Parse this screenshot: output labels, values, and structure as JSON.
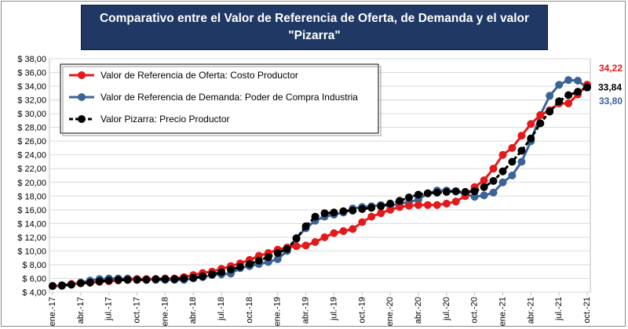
{
  "title_line1": "Comparativo entre el Valor de Referencia de Oferta, de Demanda y el valor",
  "title_line2": "\"Pizarra\"",
  "chart_data": {
    "type": "line",
    "title": "Comparativo entre el Valor de Referencia de Oferta, de Demanda y el valor \"Pizarra\"",
    "xlabel": "",
    "ylabel": "",
    "ylim": [
      4,
      38
    ],
    "yticks": [
      "$ 4,00",
      "$ 6,00",
      "$ 8,00",
      "$ 10,00",
      "$ 12,00",
      "$ 14,00",
      "$ 16,00",
      "$ 18,00",
      "$ 20,00",
      "$ 22,00",
      "$ 24,00",
      "$ 26,00",
      "$ 28,00",
      "$ 30,00",
      "$ 32,00",
      "$ 34,00",
      "$ 36,00",
      "$ 38,00"
    ],
    "ytick_values": [
      4,
      6,
      8,
      10,
      12,
      14,
      16,
      18,
      20,
      22,
      24,
      26,
      28,
      30,
      32,
      34,
      36,
      38
    ],
    "grid": true,
    "legend_position": "top-left",
    "x": [
      "ene.-17",
      "feb.-17",
      "mar.-17",
      "abr.-17",
      "may.-17",
      "jun.-17",
      "jul.-17",
      "ago.-17",
      "sep.-17",
      "oct.-17",
      "nov.-17",
      "dic.-17",
      "ene.-18",
      "feb.-18",
      "mar.-18",
      "abr.-18",
      "may.-18",
      "jun.-18",
      "jul.-18",
      "ago.-18",
      "sep.-18",
      "oct.-18",
      "nov.-18",
      "dic.-18",
      "ene.-19",
      "feb.-19",
      "mar.-19",
      "abr.-19",
      "may.-19",
      "jun.-19",
      "jul.-19",
      "ago.-19",
      "sep.-19",
      "oct.-19",
      "nov.-19",
      "dic.-19",
      "ene.-20",
      "feb.-20",
      "mar.-20",
      "abr.-20",
      "may.-20",
      "jun.-20",
      "jul.-20",
      "ago.-20",
      "sep.-20",
      "oct.-20",
      "nov.-20",
      "dic.-20",
      "ene.-21",
      "feb.-21",
      "mar.-21",
      "abr.-21",
      "may.-21",
      "jun.-21",
      "jul.-21",
      "ago.-21",
      "sep.-21",
      "oct.-21"
    ],
    "xtick_labels": [
      "ene.-17",
      "abr.-17",
      "jul.-17",
      "oct.-17",
      "ene.-18",
      "abr.-18",
      "jul.-18",
      "oct.-18",
      "ene.-19",
      "abr.-19",
      "jul.-19",
      "oct.-19",
      "ene.-20",
      "abr.-20",
      "jul.-20",
      "oct.-20",
      "ene.-21",
      "abr.-21",
      "jul.-21",
      "oct.-21"
    ],
    "series": [
      {
        "name": "Valor de Referencia de Oferta: Costo Productor",
        "color": "#e31a1c",
        "end_label": "34,22",
        "values": [
          4.9,
          5.0,
          5.2,
          5.3,
          5.4,
          5.5,
          5.6,
          5.7,
          5.8,
          5.9,
          5.9,
          5.9,
          6.0,
          6.0,
          6.2,
          6.5,
          6.8,
          7.0,
          7.4,
          7.8,
          8.2,
          8.7,
          9.3,
          9.7,
          10.2,
          10.5,
          10.7,
          10.8,
          11.3,
          12.0,
          12.6,
          12.9,
          13.2,
          14.2,
          15.0,
          15.5,
          16.0,
          16.4,
          16.6,
          16.7,
          16.7,
          16.7,
          16.9,
          17.2,
          18.0,
          19.3,
          20.3,
          22.0,
          24.0,
          25.0,
          26.8,
          28.5,
          29.8,
          30.5,
          31.5,
          31.5,
          32.8,
          34.22
        ]
      },
      {
        "name": "Valor de Referencia de Demanda: Poder de Compra Industria",
        "color": "#3b6396",
        "end_label": "33,80",
        "values": [
          4.9,
          4.9,
          5.1,
          5.4,
          5.7,
          5.9,
          6.0,
          6.0,
          6.0,
          5.9,
          5.9,
          5.8,
          5.8,
          5.8,
          5.8,
          6.0,
          6.2,
          6.5,
          6.6,
          6.7,
          7.5,
          7.8,
          8.1,
          8.4,
          8.8,
          10.0,
          11.9,
          13.3,
          14.4,
          15.0,
          15.3,
          15.6,
          16.2,
          16.4,
          16.5,
          16.7,
          16.6,
          16.9,
          17.1,
          17.5,
          18.4,
          18.8,
          18.8,
          18.7,
          18.3,
          17.9,
          18.1,
          18.5,
          20.0,
          21.0,
          23.0,
          26.0,
          29.8,
          32.6,
          34.2,
          34.9,
          34.8,
          33.8
        ]
      },
      {
        "name": "Valor Pizarra: Precio Productor",
        "color": "#000000",
        "end_label": "33,84",
        "values": [
          4.9,
          5.0,
          5.1,
          5.3,
          5.4,
          5.6,
          5.7,
          5.8,
          5.8,
          5.8,
          5.8,
          5.9,
          5.9,
          5.9,
          6.0,
          6.1,
          6.3,
          6.6,
          6.9,
          7.3,
          7.7,
          8.1,
          8.6,
          9.1,
          9.7,
          10.3,
          11.8,
          13.6,
          15.0,
          15.5,
          15.6,
          15.8,
          15.9,
          16.1,
          16.3,
          16.5,
          16.9,
          17.3,
          17.8,
          18.2,
          18.4,
          18.5,
          18.6,
          18.7,
          18.6,
          18.7,
          19.3,
          20.2,
          21.6,
          23.0,
          24.6,
          26.4,
          28.6,
          30.3,
          31.8,
          32.7,
          33.2,
          33.84
        ]
      }
    ]
  }
}
